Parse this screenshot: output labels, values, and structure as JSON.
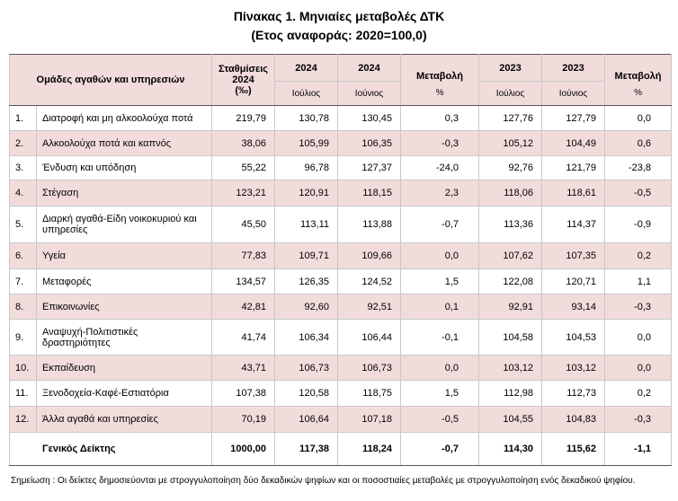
{
  "header": {
    "title": "Πίνακας 1. Μηνιαίες μεταβολές ΔΤΚ",
    "subtitle": "(Ετος αναφοράς: 2020=100,0)"
  },
  "table": {
    "head_top": [
      "Ομάδες αγαθών και υπηρεσιών",
      "Σταθμίσεις\n2024\n(‰)",
      "2024",
      "2024",
      "Μεταβολή",
      "2023",
      "2023",
      "Μεταβολή"
    ],
    "head_bottom": [
      "Ιούλιος",
      "Ιούνιος",
      "%",
      "Ιούλιος",
      "Ιούνιος",
      "%"
    ],
    "rows": [
      [
        "1.",
        "Διατροφή και μη αλκοολούχα ποτά",
        "219,79",
        "130,78",
        "130,45",
        "0,3",
        "127,76",
        "127,79",
        "0,0"
      ],
      [
        "2.",
        "Αλκοολούχα ποτά και καπνός",
        "38,06",
        "105,99",
        "106,35",
        "-0,3",
        "105,12",
        "104,49",
        "0,6"
      ],
      [
        "3.",
        "Ένδυση και υπόδηση",
        "55,22",
        "96,78",
        "127,37",
        "-24,0",
        "92,76",
        "121,79",
        "-23,8"
      ],
      [
        "4.",
        "Στέγαση",
        "123,21",
        "120,91",
        "118,15",
        "2,3",
        "118,06",
        "118,61",
        "-0,5"
      ],
      [
        "5.",
        "Διαρκή αγαθά-Είδη νοικοκυριού και υπηρεσίες",
        "45,50",
        "113,11",
        "113,88",
        "-0,7",
        "113,36",
        "114,37",
        "-0,9"
      ],
      [
        "6.",
        "Υγεία",
        "77,83",
        "109,71",
        "109,66",
        "0,0",
        "107,62",
        "107,35",
        "0,2"
      ],
      [
        "7.",
        "Μεταφορές",
        "134,57",
        "126,35",
        "124,52",
        "1,5",
        "122,08",
        "120,71",
        "1,1"
      ],
      [
        "8.",
        "Επικοινωνίες",
        "42,81",
        "92,60",
        "92,51",
        "0,1",
        "92,91",
        "93,14",
        "-0,3"
      ],
      [
        "9.",
        "Αναψυχή-Πολιτιστικές δραστηριότητες",
        "41,74",
        "106,34",
        "106,44",
        "-0,1",
        "104,58",
        "104,53",
        "0,0"
      ],
      [
        "10.",
        "Εκπαίδευση",
        "43,71",
        "106,73",
        "106,73",
        "0,0",
        "103,12",
        "103,12",
        "0,0"
      ],
      [
        "11.",
        "Ξενοδοχεία-Καφέ-Εστιατόρια",
        "107,38",
        "120,58",
        "118,75",
        "1,5",
        "112,98",
        "112,73",
        "0,2"
      ],
      [
        "12.",
        "Άλλα αγαθά και υπηρεσίες",
        "70,19",
        "106,64",
        "107,18",
        "-0,5",
        "104,55",
        "104,83",
        "-0,3"
      ]
    ],
    "total": [
      "Γενικός Δείκτης",
      "1000,00",
      "117,38",
      "118,24",
      "-0,7",
      "114,30",
      "115,62",
      "-1,1"
    ]
  },
  "note": "Σημείωση :  Οι δείκτες δημοσιεύονται με στρογγυλοποίηση δύο δεκαδικών ψηφίων και οι ποσοστιαίες μεταβολές με στρογγυλοποίηση ενός δεκαδικού ψηφίου."
}
